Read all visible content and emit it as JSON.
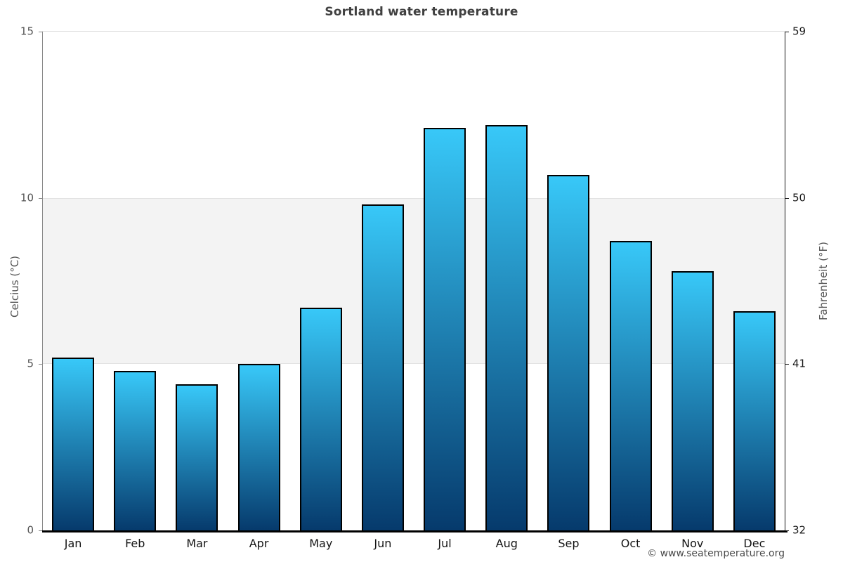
{
  "title": "Sortland water temperature",
  "footer": "© www.seatemperature.org",
  "chart_data": {
    "type": "bar",
    "title": "Sortland water temperature",
    "categories": [
      "Jan",
      "Feb",
      "Mar",
      "Apr",
      "May",
      "Jun",
      "Jul",
      "Aug",
      "Sep",
      "Oct",
      "Nov",
      "Dec"
    ],
    "values": [
      5.2,
      4.8,
      4.4,
      5.0,
      6.7,
      9.8,
      12.1,
      12.2,
      10.7,
      8.7,
      7.8,
      6.6
    ],
    "value_unit": "°C",
    "xlabel": "",
    "ylabel_left": "Celcius (°C)",
    "ylabel_right": "Fahrenheit (°F)",
    "ylim_celsius": [
      0,
      15
    ],
    "ylim_fahrenheit": [
      32,
      59
    ],
    "yticks_celsius": [
      0,
      5,
      10,
      15
    ],
    "yticks_fahrenheit": [
      32,
      41,
      50,
      59
    ],
    "shaded_band_celsius": [
      5,
      10
    ],
    "grid": "off",
    "legend": "none",
    "colors": {
      "bar_gradient_top": "#38c8f8",
      "bar_gradient_bottom": "#063a6c",
      "bar_border": "#000000",
      "band_fill": "#f3f3f3",
      "band_edge": "#e2e2e2",
      "title_color": "#404040",
      "left_tick_color": "#555555",
      "right_tick_color": "#1a1a1a"
    }
  }
}
